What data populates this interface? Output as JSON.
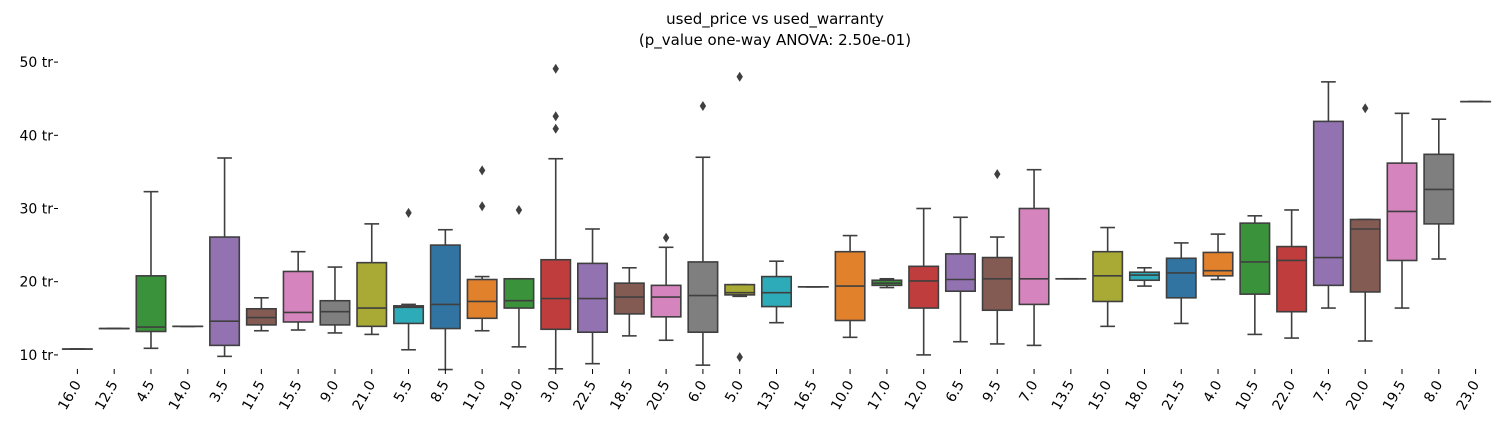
{
  "chart_data": {
    "type": "box",
    "title": "used_price vs used_warranty",
    "subtitle": "(p_value one-way ANOVA: 2.50e-01)",
    "xlabel": "",
    "ylabel": "",
    "y_tick_labels": [
      "10 tr",
      "20 tr",
      "30 tr",
      "40 tr",
      "50 tr"
    ],
    "y_tick_values": [
      10,
      20,
      30,
      40,
      50
    ],
    "ylim": [
      6.5,
      52
    ],
    "grid": false,
    "legend": "none",
    "categories": [
      "16.0",
      "12.5",
      "4.5",
      "14.0",
      "3.5",
      "11.5",
      "15.5",
      "9.0",
      "21.0",
      "5.5",
      "8.5",
      "11.0",
      "19.0",
      "3.0",
      "22.5",
      "18.5",
      "20.5",
      "6.0",
      "5.0",
      "13.0",
      "16.5",
      "10.0",
      "17.0",
      "12.0",
      "6.5",
      "9.5",
      "7.0",
      "13.5",
      "15.0",
      "18.0",
      "21.5",
      "4.0",
      "10.5",
      "22.0",
      "7.5",
      "20.0",
      "19.5",
      "8.0",
      "23.0"
    ],
    "colors": [
      "#3274a1",
      "#e1812c",
      "#3a923a",
      "#c03d3e",
      "#9372b2",
      "#845b53",
      "#d684bd",
      "#7f7f7f",
      "#a9aa35",
      "#2eabb8",
      "#3274a1",
      "#e1812c",
      "#3a923a",
      "#c03d3e",
      "#9372b2",
      "#845b53",
      "#d684bd",
      "#7f7f7f",
      "#a9aa35",
      "#2eabb8",
      "#3274a1",
      "#e1812c",
      "#3a923a",
      "#c03d3e",
      "#9372b2",
      "#845b53",
      "#d684bd",
      "#7f7f7f",
      "#a9aa35",
      "#2eabb8",
      "#3274a1",
      "#e1812c",
      "#3a923a",
      "#c03d3e",
      "#9372b2",
      "#845b53",
      "#d684bd",
      "#7f7f7f",
      "#a9aa35"
    ],
    "boxes": [
      {
        "min": 10.8,
        "q1": 10.8,
        "median": 10.8,
        "q3": 10.8,
        "max": 10.8,
        "outliers": []
      },
      {
        "min": 13.6,
        "q1": 13.6,
        "median": 13.6,
        "q3": 13.6,
        "max": 13.6,
        "outliers": []
      },
      {
        "min": 10.9,
        "q1": 13.2,
        "median": 13.8,
        "q3": 20.8,
        "max": 32.3,
        "outliers": []
      },
      {
        "min": 13.9,
        "q1": 13.9,
        "median": 13.9,
        "q3": 13.9,
        "max": 13.9,
        "outliers": []
      },
      {
        "min": 9.8,
        "q1": 11.3,
        "median": 14.6,
        "q3": 26.1,
        "max": 36.9,
        "outliers": []
      },
      {
        "min": 13.3,
        "q1": 14.1,
        "median": 15.1,
        "q3": 16.3,
        "max": 17.8,
        "outliers": []
      },
      {
        "min": 13.4,
        "q1": 14.5,
        "median": 15.8,
        "q3": 21.4,
        "max": 24.1,
        "outliers": []
      },
      {
        "min": 13.0,
        "q1": 14.1,
        "median": 15.9,
        "q3": 17.4,
        "max": 22.0,
        "outliers": []
      },
      {
        "min": 12.8,
        "q1": 13.9,
        "median": 16.4,
        "q3": 22.6,
        "max": 27.9,
        "outliers": []
      },
      {
        "min": 10.7,
        "q1": 14.3,
        "median": 16.5,
        "q3": 16.7,
        "max": 16.9,
        "outliers": [
          29.4
        ]
      },
      {
        "min": 8.0,
        "q1": 13.6,
        "median": 16.9,
        "q3": 25.0,
        "max": 27.1,
        "outliers": []
      },
      {
        "min": 13.3,
        "q1": 15.0,
        "median": 17.3,
        "q3": 20.3,
        "max": 20.7,
        "outliers": [
          30.3,
          35.2
        ]
      },
      {
        "min": 11.1,
        "q1": 16.4,
        "median": 17.4,
        "q3": 20.4,
        "max": 20.4,
        "outliers": [
          29.8
        ]
      },
      {
        "min": 8.1,
        "q1": 13.5,
        "median": 17.7,
        "q3": 23.0,
        "max": 36.8,
        "outliers": [
          40.9,
          42.6,
          49.1
        ]
      },
      {
        "min": 8.8,
        "q1": 13.1,
        "median": 17.7,
        "q3": 22.5,
        "max": 27.2,
        "outliers": []
      },
      {
        "min": 12.6,
        "q1": 15.6,
        "median": 17.9,
        "q3": 19.8,
        "max": 21.9,
        "outliers": []
      },
      {
        "min": 12.0,
        "q1": 15.2,
        "median": 17.9,
        "q3": 19.5,
        "max": 24.7,
        "outliers": [
          26.0
        ]
      },
      {
        "min": 8.6,
        "q1": 13.1,
        "median": 18.1,
        "q3": 22.7,
        "max": 37.0,
        "outliers": [
          44.0
        ]
      },
      {
        "min": 18.0,
        "q1": 18.2,
        "median": 18.5,
        "q3": 19.6,
        "max": 19.6,
        "outliers": [
          9.7,
          48.0
        ]
      },
      {
        "min": 14.4,
        "q1": 16.6,
        "median": 18.5,
        "q3": 20.7,
        "max": 22.8,
        "outliers": []
      },
      {
        "min": 19.3,
        "q1": 19.3,
        "median": 19.3,
        "q3": 19.3,
        "max": 19.3,
        "outliers": []
      },
      {
        "min": 12.4,
        "q1": 14.7,
        "median": 19.4,
        "q3": 24.1,
        "max": 26.3,
        "outliers": []
      },
      {
        "min": 19.2,
        "q1": 19.5,
        "median": 19.8,
        "q3": 20.2,
        "max": 20.4,
        "outliers": []
      },
      {
        "min": 10.0,
        "q1": 16.4,
        "median": 20.1,
        "q3": 22.1,
        "max": 30.0,
        "outliers": []
      },
      {
        "min": 11.8,
        "q1": 18.7,
        "median": 20.3,
        "q3": 23.8,
        "max": 28.8,
        "outliers": []
      },
      {
        "min": 11.5,
        "q1": 16.1,
        "median": 20.4,
        "q3": 23.3,
        "max": 26.1,
        "outliers": [
          34.7
        ]
      },
      {
        "min": 11.3,
        "q1": 16.9,
        "median": 20.4,
        "q3": 30.0,
        "max": 35.3,
        "outliers": []
      },
      {
        "min": 20.4,
        "q1": 20.4,
        "median": 20.4,
        "q3": 20.4,
        "max": 20.4,
        "outliers": []
      },
      {
        "min": 13.9,
        "q1": 17.3,
        "median": 20.8,
        "q3": 24.1,
        "max": 27.4,
        "outliers": []
      },
      {
        "min": 19.4,
        "q1": 20.2,
        "median": 20.9,
        "q3": 21.3,
        "max": 21.9,
        "outliers": []
      },
      {
        "min": 14.3,
        "q1": 17.8,
        "median": 21.2,
        "q3": 23.2,
        "max": 25.3,
        "outliers": []
      },
      {
        "min": 20.3,
        "q1": 20.8,
        "median": 21.5,
        "q3": 24.0,
        "max": 26.5,
        "outliers": []
      },
      {
        "min": 12.8,
        "q1": 18.3,
        "median": 22.7,
        "q3": 28.0,
        "max": 29.0,
        "outliers": []
      },
      {
        "min": 12.3,
        "q1": 15.9,
        "median": 22.9,
        "q3": 24.8,
        "max": 29.8,
        "outliers": []
      },
      {
        "min": 16.4,
        "q1": 19.5,
        "median": 23.3,
        "q3": 41.9,
        "max": 47.3,
        "outliers": []
      },
      {
        "min": 11.9,
        "q1": 18.6,
        "median": 27.2,
        "q3": 28.5,
        "max": 28.5,
        "outliers": [
          43.7
        ]
      },
      {
        "min": 16.4,
        "q1": 22.9,
        "median": 29.6,
        "q3": 36.2,
        "max": 43.0,
        "outliers": []
      },
      {
        "min": 23.1,
        "q1": 27.9,
        "median": 32.6,
        "q3": 37.4,
        "max": 42.2,
        "outliers": []
      },
      {
        "min": 44.6,
        "q1": 44.6,
        "median": 44.6,
        "q3": 44.6,
        "max": 44.6,
        "outliers": []
      }
    ]
  }
}
